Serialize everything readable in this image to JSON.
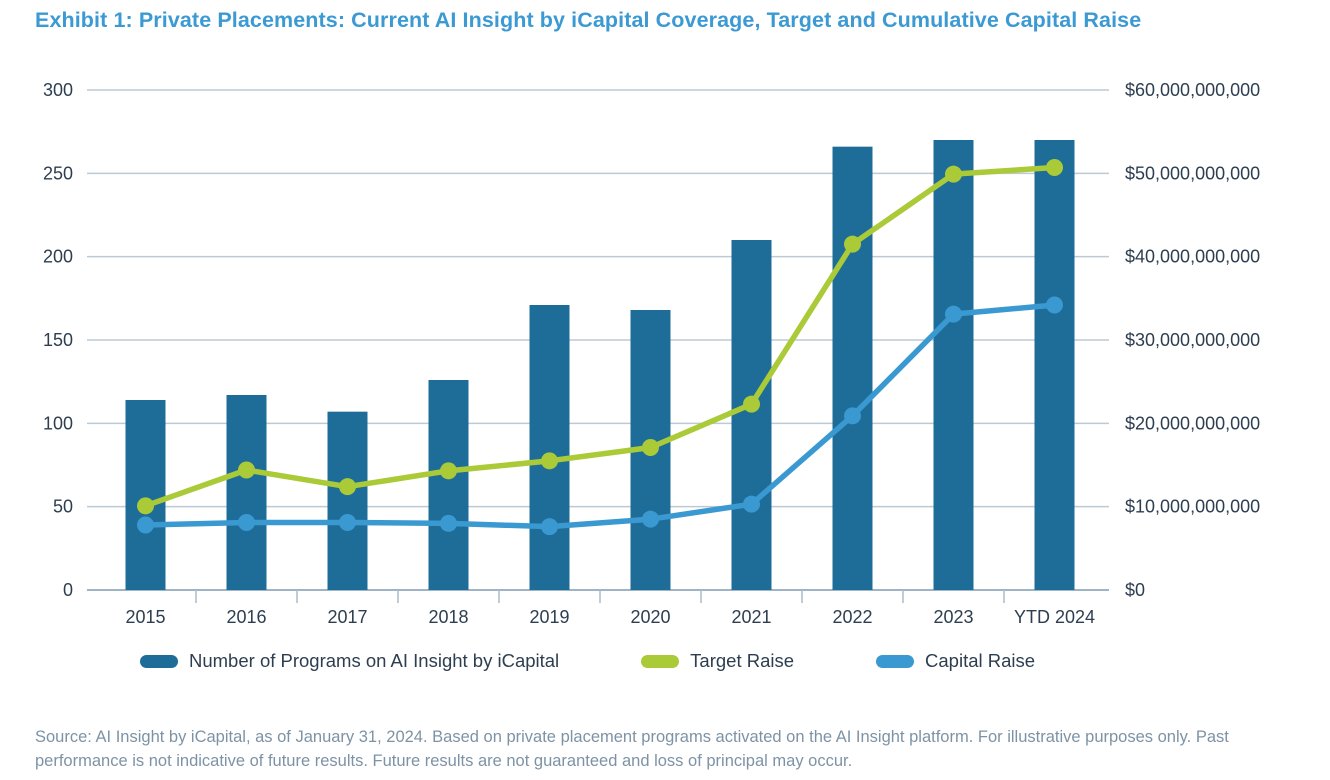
{
  "title": "Exhibit 1: Private Placements: Current AI Insight by iCapital Coverage, Target and Cumulative Capital Raise",
  "source_note": "Source: AI Insight by iCapital, as of January 31, 2024. Based on private placement programs activated on the AI Insight platform. For illustrative purposes only. Past performance is not indicative of future results. Future results are not guaranteed and loss of principal may occur.",
  "colors": {
    "title": "#3b9ad3",
    "bar": "#1e6d98",
    "target_line": "#abca38",
    "capital_line": "#3a99d1",
    "axis_text": "#2d3e50",
    "gridline": "#bccad6",
    "axis_line": "#9fb4c4",
    "tick_mark": "#a9bccb",
    "source_text": "#7d93a5"
  },
  "legend": {
    "items": [
      {
        "label": "Number of Programs on AI Insight by iCapital",
        "color": "#1e6d98"
      },
      {
        "label": "Target Raise",
        "color": "#abca38"
      },
      {
        "label": "Capital Raise",
        "color": "#3a99d1"
      }
    ]
  },
  "chart_data": {
    "type": "bar",
    "subtype": "bar-line-combo-dual-axis",
    "categories": [
      "2015",
      "2016",
      "2017",
      "2018",
      "2019",
      "2020",
      "2021",
      "2022",
      "2023",
      "YTD 2024"
    ],
    "series": [
      {
        "name": "Number of Programs on AI Insight by iCapital",
        "kind": "bar",
        "axis": "left",
        "color": "#1e6d98",
        "values": [
          114,
          117,
          107,
          126,
          171,
          168,
          210,
          266,
          270,
          270
        ]
      },
      {
        "name": "Target Raise",
        "kind": "line",
        "axis": "right",
        "color": "#abca38",
        "values": [
          10100000000,
          14400000000,
          12400000000,
          14300000000,
          15500000000,
          17100000000,
          22300000000,
          41500000000,
          49900000000,
          50700000000
        ]
      },
      {
        "name": "Capital Raise",
        "kind": "line",
        "axis": "right",
        "color": "#3a99d1",
        "values": [
          7800000000,
          8100000000,
          8100000000,
          8000000000,
          7600000000,
          8500000000,
          10300000000,
          20900000000,
          33100000000,
          34200000000
        ]
      }
    ],
    "left_axis": {
      "min": 0,
      "max": 300,
      "step": 50,
      "tick_labels": [
        "0",
        "50",
        "100",
        "150",
        "200",
        "250",
        "300"
      ]
    },
    "right_axis": {
      "min": 0,
      "max": 60000000000,
      "step": 10000000000,
      "tick_labels": [
        "$0",
        "$10,000,000,000",
        "$20,000,000,000",
        "$30,000,000,000",
        "$40,000,000,000",
        "$50,000,000,000",
        "$60,000,000,000"
      ]
    },
    "grid": true,
    "legend_position": "bottom",
    "xlabel": "",
    "ylabel_left": "",
    "ylabel_right": ""
  }
}
